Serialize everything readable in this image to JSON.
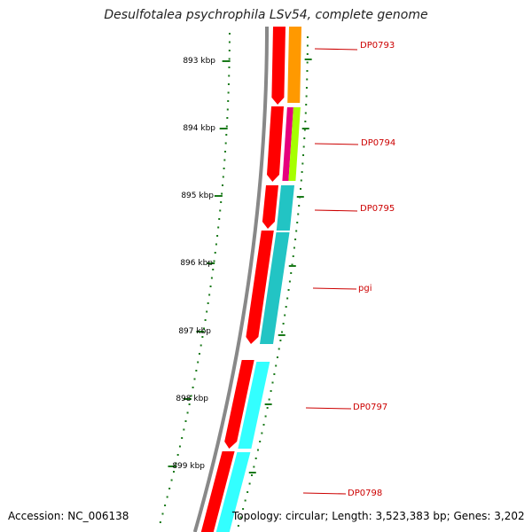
{
  "title": "Desulfotalea psychrophila LSv54, complete genome",
  "accession": "Accession: NC_006138",
  "topology": "Topology: circular; Length: 3,523,383 bp; Genes: 3,202",
  "ticks": [
    "893 kbp",
    "894 kbp",
    "895 kbp",
    "896 kbp",
    "897 kbp",
    "898 kbp",
    "899 kbp"
  ],
  "genes": [
    "DP0793",
    "DP0794",
    "DP0795",
    "pgi",
    "DP0797",
    "DP0798"
  ],
  "colors": {
    "forward_strand": "#ff0000",
    "backbone": "#888888",
    "tick": "#1a7a1a",
    "label": "#cc0000",
    "DP0793": "#ff9900",
    "DP0794_a": "#e6007e",
    "DP0794_b": "#a6ff00",
    "DP0795": "#22c4c4",
    "pgi": "#22c4c4",
    "DP0797": "#33ffff",
    "DP0798": "#33ffff"
  }
}
